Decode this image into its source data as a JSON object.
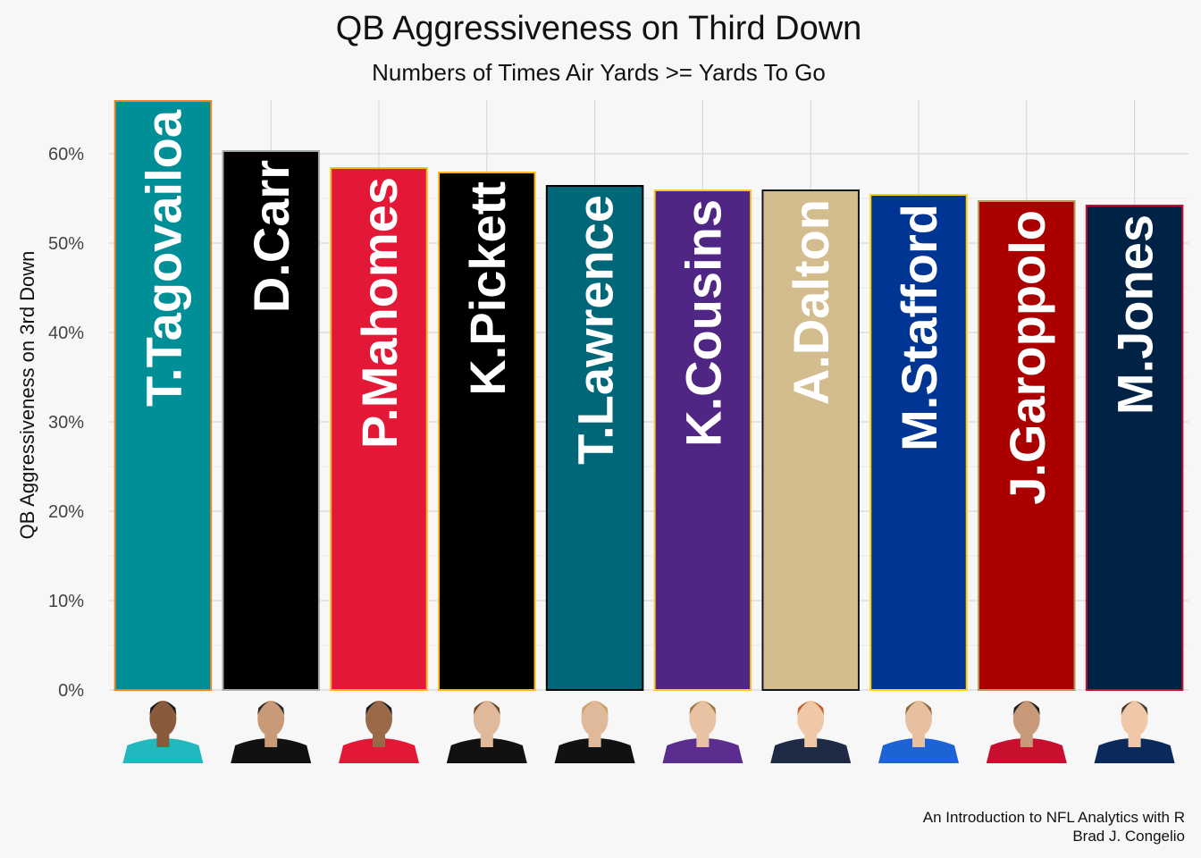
{
  "chart_data": {
    "type": "bar",
    "title": "QB Aggressiveness on Third Down",
    "subtitle": "Numbers of Times Air Yards >= Yards To Go",
    "ylabel": "QB Aggressiveness on 3rd Down",
    "xlabel": "",
    "ylim": [
      0,
      66
    ],
    "yticks": [
      0,
      10,
      20,
      30,
      40,
      50,
      60
    ],
    "ytick_labels": [
      "0%",
      "10%",
      "20%",
      "30%",
      "40%",
      "50%",
      "60%"
    ],
    "grid": true,
    "categories": [
      "T.Tagovailoa",
      "D.Carr",
      "P.Mahomes",
      "K.Pickett",
      "T.Lawrence",
      "K.Cousins",
      "A.Dalton",
      "M.Stafford",
      "J.Garoppolo",
      "M.Jones"
    ],
    "values": [
      65.9,
      60.3,
      58.4,
      57.9,
      56.4,
      55.9,
      55.9,
      55.4,
      54.7,
      54.2
    ],
    "bar_fill": [
      "#008E97",
      "#000000",
      "#E31837",
      "#000000",
      "#006778",
      "#4F2683",
      "#D3BC8D",
      "#003594",
      "#AA0000",
      "#002244"
    ],
    "bar_outline": [
      "#F58220",
      "#A5ACAF",
      "#FFB81C",
      "#FFB612",
      "#000000",
      "#FFC62F",
      "#101820",
      "#FFD100",
      "#B3995D",
      "#C60C30"
    ],
    "player_jersey": [
      "#22b8c0",
      "#111111",
      "#e31837",
      "#111111",
      "#111111",
      "#5b2d8e",
      "#1f2a44",
      "#1e63d6",
      "#c8102e",
      "#0b2a5b"
    ],
    "player_skin": [
      "#8a5a3c",
      "#c99a78",
      "#9a6a48",
      "#e0b89a",
      "#e0b89a",
      "#e8c2a2",
      "#f0c8a8",
      "#e8c0a0",
      "#c89a7a",
      "#f0c8a8"
    ],
    "player_hair": [
      "#1a1a1a",
      "#2a2a2a",
      "#1a1a1a",
      "#6b4a2a",
      "#c8a060",
      "#a07840",
      "#c0602a",
      "#8a6a40",
      "#1a1a1a",
      "#4a3a2a"
    ]
  },
  "caption": {
    "line1": "An Introduction to NFL Analytics with R",
    "line2": "Brad J. Congelio"
  }
}
